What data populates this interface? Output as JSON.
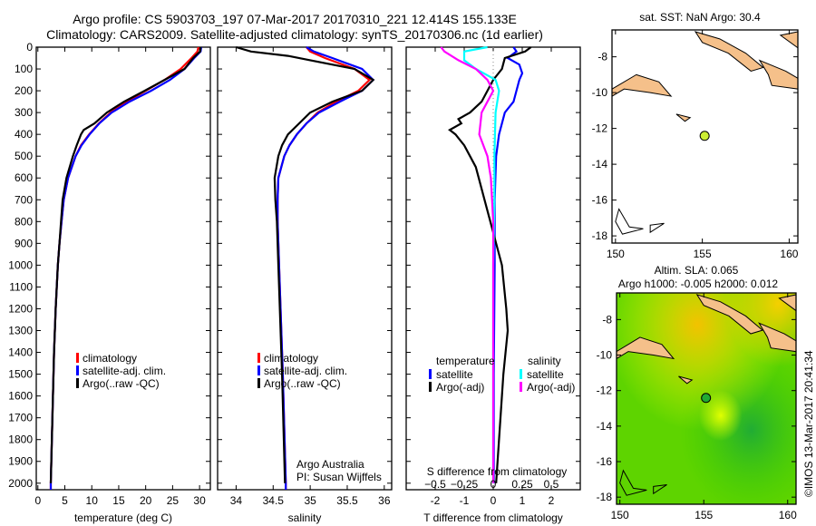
{
  "title_line1": "Argo profile: CS 5903703_197 07-Mar-2017 20170310_221 12.414S 155.133E",
  "title_line2": "Climatology: CARS2009. Satellite-adjusted climatology: synTS_20170306.nc (1d earlier)",
  "colors": {
    "climatology": "#ff0000",
    "satellite": "#0000ff",
    "argo": "#000000",
    "s_satellite": "#00ffff",
    "s_argo": "#ff00ff",
    "land": "#f5c08a"
  },
  "chart_data": [
    {
      "type": "line",
      "name": "temperature",
      "xlabel": "temperature (deg C)",
      "ylabel": "",
      "xlim": [
        -0.3,
        32
      ],
      "ylim": [
        2030,
        0
      ],
      "xticks": [
        0,
        5,
        10,
        15,
        20,
        25,
        30
      ],
      "yticks": [
        0,
        100,
        200,
        300,
        400,
        500,
        600,
        700,
        800,
        900,
        1000,
        1100,
        1200,
        1300,
        1400,
        1500,
        1600,
        1700,
        1800,
        1900,
        2000
      ],
      "legend": [
        "climatology",
        "satellite-adj. clim.",
        "Argo(..raw -QC)"
      ],
      "series": [
        {
          "name": "climatology",
          "color": "#ff0000",
          "depth": [
            0,
            20,
            50,
            100,
            150,
            200,
            250,
            300,
            350,
            400,
            450,
            500,
            600,
            700,
            800,
            900,
            1000,
            1200,
            1400,
            1600,
            1800,
            2000,
            2030
          ],
          "values": [
            29.8,
            29.6,
            28.5,
            26.5,
            23.5,
            20,
            16.5,
            13.5,
            11.3,
            9.5,
            8.0,
            7.0,
            5.6,
            4.8,
            4.4,
            4.0,
            3.7,
            3.3,
            3.0,
            2.8,
            2.6,
            2.4,
            2.4
          ]
        },
        {
          "name": "satellite-adj. clim.",
          "color": "#0000ff",
          "depth": [
            0,
            20,
            50,
            100,
            150,
            200,
            250,
            300,
            350,
            400,
            450,
            500,
            600,
            700,
            800,
            900,
            1000,
            1200,
            1400,
            1600,
            1800,
            2000,
            2030
          ],
          "values": [
            30.3,
            30.2,
            29,
            27.2,
            24.5,
            21,
            17,
            13.7,
            11.4,
            9.6,
            8.1,
            7.0,
            5.6,
            4.8,
            4.4,
            4.0,
            3.7,
            3.3,
            3.0,
            2.8,
            2.6,
            2.4,
            2.4
          ]
        },
        {
          "name": "Argo(..raw -QC)",
          "color": "#000000",
          "depth": [
            0,
            20,
            50,
            100,
            150,
            200,
            250,
            300,
            350,
            380,
            400,
            450,
            500,
            600,
            700,
            800,
            900,
            1000,
            1200,
            1400,
            1600,
            1800,
            2000
          ],
          "values": [
            30.2,
            30.1,
            28.8,
            27.2,
            23.5,
            19.8,
            16,
            12.8,
            10.5,
            8.5,
            8.0,
            7.2,
            6.5,
            5.3,
            4.6,
            4.3,
            4.0,
            3.7,
            3.3,
            3.0,
            2.8,
            2.6,
            2.4
          ]
        }
      ]
    },
    {
      "type": "line",
      "name": "salinity",
      "xlabel": "salinity",
      "xlim": [
        33.75,
        36.1
      ],
      "ylim": [
        2030,
        0
      ],
      "xticks": [
        34,
        34.5,
        35,
        35.5,
        36
      ],
      "legend": [
        "climatology",
        "satellite-adj. clim.",
        "Argo(..raw -QC)"
      ],
      "annotation": [
        "Argo Australia",
        "PI: Susan Wijffels"
      ],
      "series": [
        {
          "name": "climatology",
          "color": "#ff0000",
          "depth": [
            0,
            20,
            50,
            100,
            150,
            200,
            250,
            300,
            350,
            400,
            450,
            500,
            600,
            700,
            800,
            1000,
            1500,
            2000,
            2030
          ],
          "values": [
            34.95,
            35.0,
            35.2,
            35.6,
            35.8,
            35.65,
            35.35,
            35.1,
            34.95,
            34.82,
            34.72,
            34.65,
            34.57,
            34.56,
            34.56,
            34.58,
            34.63,
            34.67,
            34.67
          ]
        },
        {
          "name": "satellite-adj. clim.",
          "color": "#0000ff",
          "depth": [
            0,
            20,
            50,
            100,
            150,
            200,
            250,
            300,
            350,
            400,
            450,
            500,
            600,
            700,
            800,
            1000,
            1500,
            2000,
            2030
          ],
          "values": [
            34.95,
            35.05,
            35.3,
            35.7,
            35.85,
            35.7,
            35.4,
            35.12,
            34.95,
            34.82,
            34.72,
            34.65,
            34.57,
            34.56,
            34.56,
            34.58,
            34.63,
            34.67,
            34.67
          ]
        },
        {
          "name": "Argo(..raw -QC)",
          "color": "#000000",
          "depth": [
            0,
            20,
            40,
            60,
            100,
            150,
            200,
            250,
            300,
            350,
            400,
            450,
            500,
            600,
            700,
            800,
            1000,
            1500,
            2000
          ],
          "values": [
            34.0,
            34.2,
            34.7,
            35.0,
            35.6,
            35.85,
            35.7,
            35.3,
            35.0,
            34.85,
            34.7,
            34.62,
            34.57,
            34.52,
            34.53,
            34.55,
            34.57,
            34.62,
            34.66
          ]
        }
      ]
    },
    {
      "type": "line",
      "name": "difference",
      "xlabel": "T difference from climatology",
      "x2label": "S difference from climatology",
      "xlim": [
        -3.0,
        3.0
      ],
      "ylim": [
        2030,
        0
      ],
      "xticks": [
        -2,
        -1,
        0,
        1,
        2
      ],
      "x2ticks": [
        -0.5,
        -0.25,
        0,
        0.25,
        0.5
      ],
      "legend_titles": [
        "temperature",
        "salinity"
      ],
      "legend": [
        "satellite",
        "Argo(-adj)",
        "satellite",
        "Argo(-adj)"
      ],
      "series": [
        {
          "name": "T satellite",
          "color": "#0000ff",
          "depth": [
            0,
            20,
            50,
            80,
            120,
            150,
            200,
            250,
            300,
            400,
            500,
            700,
            1000,
            1500,
            2000
          ],
          "values": [
            0.7,
            0.8,
            0.5,
            0.9,
            1.0,
            0.9,
            0.8,
            0.7,
            0.4,
            0.2,
            0.1,
            0.05,
            0.05,
            0.02,
            0.02
          ]
        },
        {
          "name": "T Argo(-adj)",
          "color": "#000000",
          "depth": [
            0,
            20,
            50,
            100,
            150,
            200,
            250,
            300,
            330,
            350,
            380,
            400,
            450,
            500,
            550,
            600,
            700,
            800,
            900,
            1000,
            1200,
            1300,
            1500,
            1700,
            1900,
            2000
          ],
          "values": [
            1.3,
            1.1,
            0.4,
            0.3,
            0,
            -0.2,
            -0.4,
            -0.8,
            -1.2,
            -1.1,
            -1.5,
            -1.3,
            -1.0,
            -0.8,
            -0.6,
            -0.5,
            -0.3,
            -0.1,
            0.1,
            0.3,
            0.45,
            0.5,
            0.35,
            0.25,
            0.15,
            0.1
          ]
        },
        {
          "name": "S satellite",
          "color": "#00ffff",
          "depth": [
            0,
            20,
            60,
            100,
            150,
            200,
            300,
            500,
            700,
            1000,
            1500,
            2000
          ],
          "values": [
            -0.05,
            -0.25,
            -0.25,
            -0.15,
            0.02,
            0.05,
            0.02,
            0.01,
            0.01,
            0,
            0,
            0
          ]
        },
        {
          "name": "S Argo(-adj)",
          "color": "#ff00ff",
          "depth": [
            0,
            20,
            60,
            100,
            150,
            200,
            300,
            400,
            500,
            600,
            800,
            1000,
            1500,
            2000
          ],
          "values": [
            -0.45,
            -0.42,
            -0.3,
            -0.15,
            -0.05,
            0,
            -0.1,
            -0.12,
            -0.05,
            -0.02,
            0,
            0,
            0,
            0
          ]
        }
      ]
    },
    {
      "type": "map",
      "name": "sst",
      "title": "sat. SST: NaN Argo: 30.4",
      "xlim": [
        149.8,
        160.5
      ],
      "ylim": [
        -18.4,
        -6.5
      ],
      "xticks": [
        150,
        155,
        160
      ],
      "yticks": [
        -8,
        -10,
        -12,
        -14,
        -16,
        -18
      ],
      "point": [
        155.133,
        -12.414
      ]
    },
    {
      "type": "map",
      "name": "sla",
      "title1": "Altim. SLA: 0.065",
      "title2": "Argo h1000: -0.005 h2000: 0.012",
      "xlim": [
        149.8,
        160.5
      ],
      "ylim": [
        -18.4,
        -6.5
      ],
      "xticks": [
        150,
        155,
        160
      ],
      "yticks": [
        -8,
        -10,
        -12,
        -14,
        -16,
        -18
      ],
      "point": [
        155.133,
        -12.414
      ],
      "credit": "©IMOS 13-Mar-2017 20:41:34"
    }
  ]
}
